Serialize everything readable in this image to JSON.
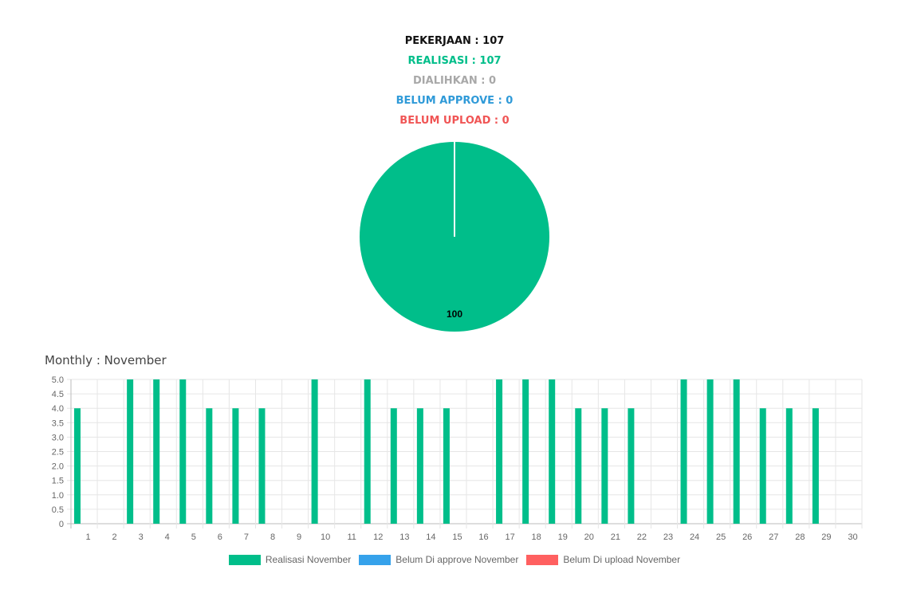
{
  "summary": {
    "pekerjaan": "PEKERJAAN : 107",
    "realisasi": "REALISASI : 107",
    "dialihkan": "DIALIHKAN : 0",
    "belum_approve": "BELUM APPROVE : 0",
    "belum_upload": "BELUM UPLOAD : 0"
  },
  "colors": {
    "pekerjaan": "#111111",
    "realisasi": "#00be8a",
    "dialihkan": "#a8a8a8",
    "belum_approve": "#2f9ad8",
    "belum_upload": "#f05555"
  },
  "monthly_title": "Monthly : November",
  "legend": [
    {
      "label": "Realisasi November",
      "color": "#00be8a"
    },
    {
      "label": "Belum Di approve November",
      "color": "#36a2eb"
    },
    {
      "label": "Belum Di upload November",
      "color": "#ff6060"
    }
  ],
  "chart_data": [
    {
      "type": "pie",
      "slices": [
        {
          "label": "Realisasi",
          "value": 100,
          "color": "#00be8a"
        },
        {
          "label": "Belum Di approve",
          "value": 0,
          "color": "#36a2eb"
        },
        {
          "label": "Belum Di upload",
          "value": 0,
          "color": "#ff6060"
        }
      ],
      "data_labels": [
        "100"
      ]
    },
    {
      "type": "bar",
      "categories": [
        "1",
        "2",
        "3",
        "4",
        "5",
        "6",
        "7",
        "8",
        "9",
        "10",
        "11",
        "12",
        "13",
        "14",
        "15",
        "16",
        "17",
        "18",
        "19",
        "20",
        "21",
        "22",
        "23",
        "24",
        "25",
        "26",
        "27",
        "28",
        "29",
        "30"
      ],
      "series": [
        {
          "name": "Realisasi November",
          "color": "#00be8a",
          "values": [
            4,
            0,
            5,
            5,
            5,
            4,
            4,
            4,
            0,
            5,
            0,
            5,
            4,
            4,
            4,
            0,
            5,
            5,
            5,
            4,
            4,
            4,
            0,
            5,
            5,
            5,
            4,
            4,
            4,
            0
          ]
        },
        {
          "name": "Belum Di approve November",
          "color": "#36a2eb",
          "values": [
            0,
            0,
            0,
            0,
            0,
            0,
            0,
            0,
            0,
            0,
            0,
            0,
            0,
            0,
            0,
            0,
            0,
            0,
            0,
            0,
            0,
            0,
            0,
            0,
            0,
            0,
            0,
            0,
            0,
            0
          ]
        },
        {
          "name": "Belum Di upload November",
          "color": "#ff6060",
          "values": [
            0,
            0,
            0,
            0,
            0,
            0,
            0,
            0,
            0,
            0,
            0,
            0,
            0,
            0,
            0,
            0,
            0,
            0,
            0,
            0,
            0,
            0,
            0,
            0,
            0,
            0,
            0,
            0,
            0,
            0
          ]
        }
      ],
      "ylim": [
        0,
        5
      ],
      "yticks": [
        "0",
        "0.5",
        "1.0",
        "1.5",
        "2.0",
        "2.5",
        "3.0",
        "3.5",
        "4.0",
        "4.5",
        "5.0"
      ],
      "grid": true,
      "legend_position": "bottom"
    }
  ]
}
